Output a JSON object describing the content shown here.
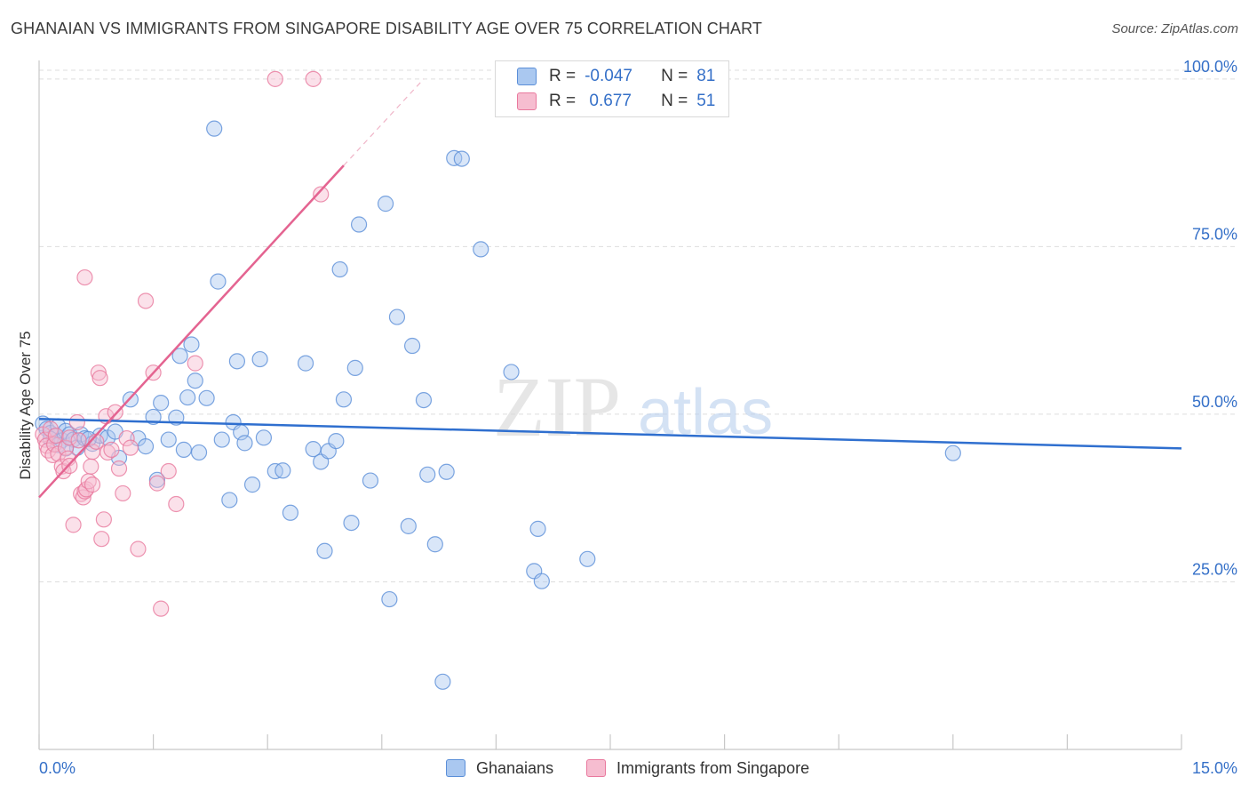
{
  "title": "GHANAIAN VS IMMIGRANTS FROM SINGAPORE DISABILITY AGE OVER 75 CORRELATION CHART",
  "source": "Source: ZipAtlas.com",
  "watermark": {
    "zip": "ZIP",
    "atlas": "atlas"
  },
  "colors": {
    "blue_fill": "#aac8f0",
    "blue_stroke": "#5b8fd8",
    "blue_line": "#2f6fcf",
    "pink_fill": "#f6bdd0",
    "pink_stroke": "#e9799e",
    "pink_line": "#e46491",
    "axis_text": "#3570c8",
    "grid": "#dddddd"
  },
  "legend": {
    "rows": [
      {
        "r_label": "R =",
        "r_value": "-0.047",
        "n_label": "N =",
        "n_value": "81",
        "color": "#aac8f0",
        "border": "#5b8fd8"
      },
      {
        "r_label": "R =",
        "r_value": " 0.677",
        "n_label": "N =",
        "n_value": "51",
        "color": "#f6bdd0",
        "border": "#e9799e"
      }
    ]
  },
  "bottom_legend": [
    {
      "label": "Ghanaians",
      "color": "#aac8f0",
      "border": "#5b8fd8"
    },
    {
      "label": "Immigrants from Singapore",
      "color": "#f6bdd0",
      "border": "#e9799e"
    }
  ],
  "chart_data": {
    "type": "scatter",
    "title": "GHANAIAN VS IMMIGRANTS FROM SINGAPORE DISABILITY AGE OVER 75 CORRELATION CHART",
    "xlabel": "",
    "ylabel": "Disability Age Over 75",
    "xlim": [
      0,
      15
    ],
    "ylim": [
      0,
      102.5
    ],
    "x_tick_labels": [
      "0.0%",
      "15.0%"
    ],
    "y_ticks": [
      25,
      50,
      75,
      100
    ],
    "y_tick_labels": [
      "25.0%",
      "50.0%",
      "75.0%",
      "100.0%"
    ],
    "series": [
      {
        "name": "Ghanaians",
        "r": -0.047,
        "n": 81,
        "trend": {
          "x0": 0,
          "y0": 49.3,
          "x1": 15,
          "y1": 44.9
        },
        "points": [
          [
            0.05,
            48.6
          ],
          [
            0.1,
            47.8
          ],
          [
            0.15,
            47.2
          ],
          [
            0.2,
            46.7
          ],
          [
            0.25,
            48.2
          ],
          [
            0.3,
            46.1
          ],
          [
            0.35,
            47.5
          ],
          [
            0.4,
            47.0
          ],
          [
            0.45,
            46.2
          ],
          [
            0.5,
            45.0
          ],
          [
            0.55,
            47.0
          ],
          [
            0.6,
            46.4
          ],
          [
            0.7,
            45.6
          ],
          [
            0.8,
            46.8
          ],
          [
            0.9,
            46.5
          ],
          [
            1.0,
            47.4
          ],
          [
            1.05,
            43.5
          ],
          [
            1.2,
            52.2
          ],
          [
            1.3,
            46.4
          ],
          [
            1.4,
            45.2
          ],
          [
            1.5,
            49.6
          ],
          [
            1.55,
            40.2
          ],
          [
            1.6,
            51.7
          ],
          [
            1.7,
            46.2
          ],
          [
            1.8,
            49.5
          ],
          [
            1.85,
            58.7
          ],
          [
            1.9,
            44.7
          ],
          [
            1.95,
            52.5
          ],
          [
            2.0,
            60.4
          ],
          [
            2.05,
            55.0
          ],
          [
            2.1,
            44.3
          ],
          [
            2.2,
            52.4
          ],
          [
            2.3,
            92.6
          ],
          [
            2.35,
            69.8
          ],
          [
            2.4,
            46.2
          ],
          [
            2.5,
            37.2
          ],
          [
            2.55,
            48.8
          ],
          [
            2.6,
            57.9
          ],
          [
            2.65,
            47.3
          ],
          [
            2.7,
            45.7
          ],
          [
            2.8,
            39.5
          ],
          [
            2.9,
            58.2
          ],
          [
            2.95,
            46.5
          ],
          [
            3.1,
            41.5
          ],
          [
            3.2,
            41.6
          ],
          [
            3.3,
            35.3
          ],
          [
            3.5,
            57.6
          ],
          [
            3.6,
            44.8
          ],
          [
            3.7,
            42.9
          ],
          [
            3.75,
            29.6
          ],
          [
            3.8,
            44.5
          ],
          [
            3.9,
            46.0
          ],
          [
            3.95,
            71.6
          ],
          [
            4.0,
            52.2
          ],
          [
            4.1,
            33.8
          ],
          [
            4.15,
            56.9
          ],
          [
            4.2,
            78.3
          ],
          [
            4.35,
            40.1
          ],
          [
            4.55,
            81.4
          ],
          [
            4.6,
            22.4
          ],
          [
            4.7,
            64.5
          ],
          [
            4.85,
            33.3
          ],
          [
            4.9,
            60.2
          ],
          [
            5.05,
            52.1
          ],
          [
            5.1,
            41.0
          ],
          [
            5.2,
            30.6
          ],
          [
            5.3,
            10.1
          ],
          [
            5.35,
            41.4
          ],
          [
            5.45,
            88.2
          ],
          [
            5.55,
            88.1
          ],
          [
            5.8,
            74.6
          ],
          [
            6.2,
            56.3
          ],
          [
            6.5,
            26.6
          ],
          [
            6.55,
            32.9
          ],
          [
            6.6,
            25.1
          ],
          [
            7.2,
            28.4
          ],
          [
            12.0,
            44.2
          ],
          [
            0.15,
            46.3
          ],
          [
            0.25,
            45.4
          ],
          [
            0.35,
            44.9
          ],
          [
            0.65,
            46.3
          ]
        ]
      },
      {
        "name": "Immigrants from Singapore",
        "r": 0.677,
        "n": 51,
        "trend": {
          "x0": 0,
          "y0": 37.6,
          "x1": 4.0,
          "y1": 87.1
        },
        "trend_dash": {
          "x0": 4.0,
          "y0": 87.1,
          "x1": 5.05,
          "y1": 100.0
        },
        "points": [
          [
            0.05,
            47.0
          ],
          [
            0.08,
            46.2
          ],
          [
            0.1,
            45.3
          ],
          [
            0.12,
            44.6
          ],
          [
            0.15,
            47.8
          ],
          [
            0.18,
            43.9
          ],
          [
            0.2,
            45.5
          ],
          [
            0.22,
            46.8
          ],
          [
            0.25,
            44.1
          ],
          [
            0.3,
            42.2
          ],
          [
            0.32,
            41.5
          ],
          [
            0.35,
            45.0
          ],
          [
            0.38,
            43.4
          ],
          [
            0.4,
            46.5
          ],
          [
            0.45,
            33.5
          ],
          [
            0.5,
            48.8
          ],
          [
            0.52,
            46.1
          ],
          [
            0.55,
            38.1
          ],
          [
            0.58,
            37.6
          ],
          [
            0.6,
            38.5
          ],
          [
            0.62,
            38.8
          ],
          [
            0.65,
            40.0
          ],
          [
            0.68,
            42.2
          ],
          [
            0.7,
            44.4
          ],
          [
            0.75,
            45.9
          ],
          [
            0.78,
            56.2
          ],
          [
            0.8,
            55.4
          ],
          [
            0.82,
            31.4
          ],
          [
            0.85,
            34.3
          ],
          [
            0.88,
            49.7
          ],
          [
            0.9,
            44.3
          ],
          [
            0.95,
            44.7
          ],
          [
            1.0,
            50.3
          ],
          [
            1.05,
            41.9
          ],
          [
            1.1,
            38.2
          ],
          [
            1.15,
            46.4
          ],
          [
            1.2,
            45.0
          ],
          [
            1.3,
            29.9
          ],
          [
            1.4,
            66.9
          ],
          [
            1.5,
            56.2
          ],
          [
            1.55,
            39.7
          ],
          [
            1.6,
            21.0
          ],
          [
            1.7,
            41.5
          ],
          [
            1.8,
            36.6
          ],
          [
            2.05,
            57.6
          ],
          [
            0.6,
            70.4
          ],
          [
            3.1,
            100.0
          ],
          [
            3.6,
            100.0
          ],
          [
            3.7,
            82.8
          ],
          [
            0.4,
            42.3
          ],
          [
            0.7,
            39.5
          ]
        ]
      }
    ]
  }
}
